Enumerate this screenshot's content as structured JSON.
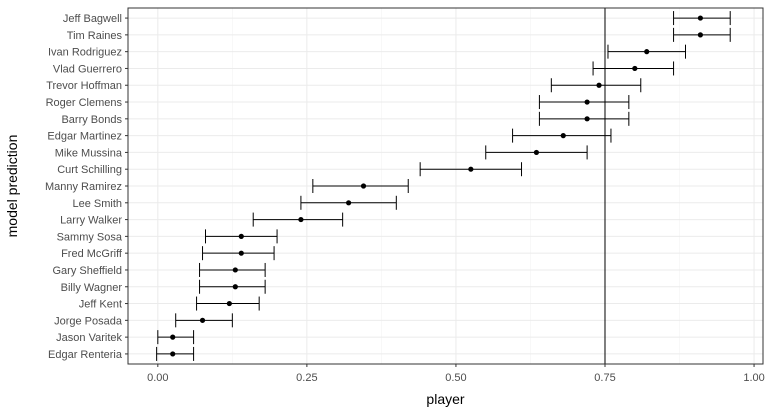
{
  "chart_data": {
    "type": "scatter",
    "subtype": "point-with-horizontal-error-bars",
    "xlabel": "player",
    "ylabel": "model prediction",
    "xlim": [
      -0.05,
      1.015
    ],
    "xticks": [
      0.0,
      0.25,
      0.5,
      0.75,
      1.0
    ],
    "xtick_labels": [
      "0.00",
      "0.25",
      "0.50",
      "0.75",
      "1.00"
    ],
    "reference_line_x": 0.75,
    "grid": true,
    "panel_border": true,
    "points": [
      {
        "label": "Jeff Bagwell",
        "value": 0.91,
        "low": 0.865,
        "high": 0.96
      },
      {
        "label": "Tim Raines",
        "value": 0.91,
        "low": 0.865,
        "high": 0.96
      },
      {
        "label": "Ivan Rodriguez",
        "value": 0.82,
        "low": 0.755,
        "high": 0.885
      },
      {
        "label": "Vlad Guerrero",
        "value": 0.8,
        "low": 0.73,
        "high": 0.865
      },
      {
        "label": "Trevor Hoffman",
        "value": 0.74,
        "low": 0.66,
        "high": 0.81
      },
      {
        "label": "Roger Clemens",
        "value": 0.72,
        "low": 0.64,
        "high": 0.79
      },
      {
        "label": "Barry Bonds",
        "value": 0.72,
        "low": 0.64,
        "high": 0.79
      },
      {
        "label": "Edgar Martinez",
        "value": 0.68,
        "low": 0.595,
        "high": 0.76
      },
      {
        "label": "Mike Mussina",
        "value": 0.635,
        "low": 0.55,
        "high": 0.72
      },
      {
        "label": "Curt Schilling",
        "value": 0.525,
        "low": 0.44,
        "high": 0.61
      },
      {
        "label": "Manny Ramirez",
        "value": 0.345,
        "low": 0.26,
        "high": 0.42
      },
      {
        "label": "Lee Smith",
        "value": 0.32,
        "low": 0.24,
        "high": 0.4
      },
      {
        "label": "Larry Walker",
        "value": 0.24,
        "low": 0.16,
        "high": 0.31
      },
      {
        "label": "Sammy Sosa",
        "value": 0.14,
        "low": 0.08,
        "high": 0.2
      },
      {
        "label": "Fred McGriff",
        "value": 0.14,
        "low": 0.075,
        "high": 0.195
      },
      {
        "label": "Gary Sheffield",
        "value": 0.13,
        "low": 0.07,
        "high": 0.18
      },
      {
        "label": "Billy Wagner",
        "value": 0.13,
        "low": 0.07,
        "high": 0.18
      },
      {
        "label": "Jeff Kent",
        "value": 0.12,
        "low": 0.065,
        "high": 0.17
      },
      {
        "label": "Jorge Posada",
        "value": 0.075,
        "low": 0.03,
        "high": 0.125
      },
      {
        "label": "Jason Varitek",
        "value": 0.025,
        "low": 0.0,
        "high": 0.06
      },
      {
        "label": "Edgar Renteria",
        "value": 0.025,
        "low": -0.002,
        "high": 0.06
      }
    ]
  }
}
